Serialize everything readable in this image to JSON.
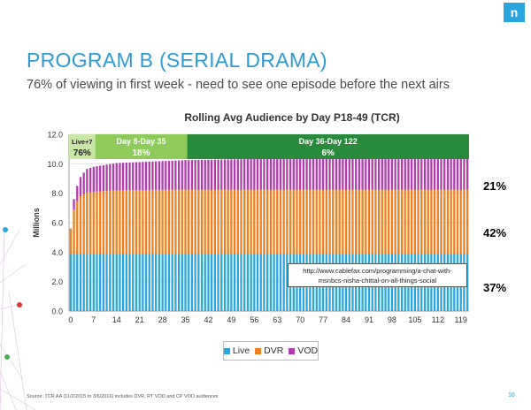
{
  "slide": {
    "title": "PROGRAM B (SERIAL DRAMA)",
    "subtitle": "76% of viewing in first week - need to see one episode before the next airs",
    "brand_letter": "n",
    "footer": "Source: TCR AA (11/2/2015 to 3/6/2016) includes DVR, RT VOD and CP VOD audiences",
    "page_number": "10",
    "url_note": "http://www.cablefax.com/programming/a-chat-with-msnbcs-nisha-chittal-on-all-things-social",
    "share_labels": [
      {
        "text": "21%",
        "color": "#b23bb0"
      },
      {
        "text": "42%",
        "color": "#f07f20"
      },
      {
        "text": "37%",
        "color": "#2aa6df"
      }
    ],
    "phases": [
      {
        "label": "Live+7",
        "value": "76%",
        "bg": "#c9e6a6",
        "fg": "#222222",
        "from_day": 0,
        "to_day": 7
      },
      {
        "label": "Day 8-Day 35",
        "value": "18%",
        "bg": "#8fcb5b",
        "fg": "#ffffff",
        "from_day": 7,
        "to_day": 35
      },
      {
        "label": "Day 36-Day 122",
        "value": "6%",
        "bg": "#2a8a3c",
        "fg": "#ffffff",
        "from_day": 35,
        "to_day": 122
      }
    ]
  },
  "chart_data": {
    "type": "bar",
    "stacked": true,
    "title": "Rolling Avg Audience by Day P18-49 (TCR)",
    "xlabel": "",
    "ylabel": "Millions",
    "ylim": [
      0,
      12
    ],
    "yticks": [
      "0.0",
      "2.0",
      "4.0",
      "6.0",
      "8.0",
      "10.0",
      "12.0"
    ],
    "xticks": [
      "0",
      "7",
      "14",
      "21",
      "28",
      "35",
      "42",
      "49",
      "56",
      "63",
      "70",
      "77",
      "84",
      "91",
      "98",
      "105",
      "112",
      "119"
    ],
    "x_start": 0,
    "x_end": 121,
    "legend": {
      "position": "bottom",
      "entries": [
        "Live",
        "DVR",
        "VOD"
      ]
    },
    "grid": true,
    "series": [
      {
        "name": "Live",
        "color": "#2aa6df",
        "constant": 3.9
      },
      {
        "name": "DVR",
        "color": "#f07f20",
        "anchors": [
          [
            0,
            1.7
          ],
          [
            1,
            3.0
          ],
          [
            2,
            3.6
          ],
          [
            3,
            3.9
          ],
          [
            4,
            4.05
          ],
          [
            5,
            4.15
          ],
          [
            7,
            4.2
          ],
          [
            14,
            4.3
          ],
          [
            35,
            4.35
          ],
          [
            121,
            4.35
          ]
        ]
      },
      {
        "name": "VOD",
        "color": "#b23bb0",
        "anchors": [
          [
            0,
            0.0
          ],
          [
            1,
            0.7
          ],
          [
            2,
            1.0
          ],
          [
            3,
            1.3
          ],
          [
            4,
            1.45
          ],
          [
            5,
            1.6
          ],
          [
            7,
            1.7
          ],
          [
            14,
            1.85
          ],
          [
            21,
            1.9
          ],
          [
            28,
            1.95
          ],
          [
            35,
            2.0
          ],
          [
            63,
            2.1
          ],
          [
            90,
            2.15
          ],
          [
            121,
            2.2
          ]
        ]
      }
    ]
  }
}
